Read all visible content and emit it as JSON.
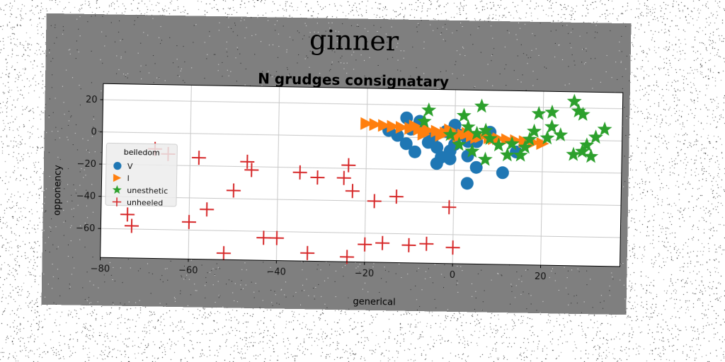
{
  "figure": {
    "suptitle": "ginner",
    "colors": {
      "figure_bg": "#7f7f7f",
      "axes_bg": "#ffffff",
      "grid": "#c8c8c8",
      "text": "#111111"
    }
  },
  "chart_data": {
    "type": "scatter",
    "title": "N grudges consignatary",
    "xlabel": "generical",
    "ylabel": "opponency",
    "xlim": [
      -80,
      38
    ],
    "ylim": [
      -78,
      30
    ],
    "xticks": [
      -80,
      -60,
      -40,
      -20,
      0,
      20
    ],
    "yticks": [
      20,
      0,
      -20,
      -40,
      -60
    ],
    "xtick_labels": [
      "−80",
      "−60",
      "−40",
      "−20",
      "0",
      "20"
    ],
    "ytick_labels": [
      "20",
      "0",
      "−20",
      "−40",
      "−60"
    ],
    "grid": true,
    "legend": {
      "title": "belledom",
      "position": "center-left"
    },
    "series": [
      {
        "name": "V",
        "marker": "circle",
        "color": "#1f77b4",
        "points": [
          [
            -11,
            12
          ],
          [
            -8,
            10
          ],
          [
            -10,
            5
          ],
          [
            -13,
            1
          ],
          [
            -15,
            4
          ],
          [
            -11,
            -4
          ],
          [
            -9,
            -9
          ],
          [
            -6,
            -3
          ],
          [
            -5,
            0
          ],
          [
            -4,
            -6
          ],
          [
            -3,
            -12
          ],
          [
            -1,
            -8
          ],
          [
            0,
            -4
          ],
          [
            1,
            2
          ],
          [
            0,
            8
          ],
          [
            3,
            -2
          ],
          [
            -2,
            4
          ],
          [
            -4,
            -16
          ],
          [
            -1,
            -13
          ],
          [
            3,
            -11
          ],
          [
            5,
            -2
          ],
          [
            5,
            -18
          ],
          [
            3,
            -28
          ],
          [
            11,
            -21
          ],
          [
            8,
            4
          ],
          [
            14,
            -8
          ]
        ]
      },
      {
        "name": "I",
        "marker": "triangle-right",
        "color": "#ff7f0e",
        "points": [
          [
            -20,
            8
          ],
          [
            -18,
            7.5
          ],
          [
            -16,
            7
          ],
          [
            -14,
            6.5
          ],
          [
            -12,
            6
          ],
          [
            -10,
            5.5
          ],
          [
            -8,
            5
          ],
          [
            -6,
            4.5
          ],
          [
            -4,
            4
          ],
          [
            -2,
            3
          ],
          [
            0,
            2.5
          ],
          [
            2,
            2
          ],
          [
            4,
            1.5
          ],
          [
            6,
            1
          ],
          [
            8,
            0.5
          ],
          [
            10,
            0
          ],
          [
            12,
            -0.5
          ],
          [
            14,
            -1
          ],
          [
            16,
            -1.5
          ],
          [
            18,
            -2
          ],
          [
            20,
            -2.5
          ],
          [
            -7,
            2
          ],
          [
            -3,
            1.5
          ],
          [
            1,
            1
          ],
          [
            5,
            0.5
          ],
          [
            9,
            0
          ],
          [
            -9,
            7
          ],
          [
            -1,
            5
          ],
          [
            3,
            3
          ]
        ]
      },
      {
        "name": "unesthetic",
        "marker": "star",
        "color": "#2ca02c",
        "points": [
          [
            -6,
            17
          ],
          [
            -7,
            10
          ],
          [
            2,
            14
          ],
          [
            6,
            20
          ],
          [
            3,
            7
          ],
          [
            5,
            3
          ],
          [
            7,
            5
          ],
          [
            8,
            0
          ],
          [
            10,
            -4
          ],
          [
            12,
            -10
          ],
          [
            16,
            -5
          ],
          [
            13,
            -3
          ],
          [
            18,
            5
          ],
          [
            21,
            1
          ],
          [
            19,
            16
          ],
          [
            22,
            17
          ],
          [
            22,
            8
          ],
          [
            24,
            3
          ],
          [
            27,
            24
          ],
          [
            28,
            18
          ],
          [
            29,
            16
          ],
          [
            30,
            -3
          ],
          [
            32,
            2
          ],
          [
            34,
            7
          ],
          [
            27,
            -9
          ],
          [
            29,
            -7
          ],
          [
            31,
            -10
          ],
          [
            1,
            -4
          ],
          [
            -1,
            2
          ],
          [
            4,
            -8
          ],
          [
            7,
            -13
          ],
          [
            15,
            -10
          ],
          [
            17,
            0
          ]
        ]
      },
      {
        "name": "unheeled",
        "marker": "plus",
        "color": "#d62728",
        "points": [
          [
            -68,
            -10
          ],
          [
            -65,
            -13
          ],
          [
            -58,
            -15
          ],
          [
            -47,
            -17
          ],
          [
            -46,
            -22
          ],
          [
            -35,
            -23
          ],
          [
            -31,
            -26
          ],
          [
            -25,
            -26
          ],
          [
            -24,
            -18
          ],
          [
            -23,
            -34
          ],
          [
            -50,
            -35
          ],
          [
            -56,
            -47
          ],
          [
            -60,
            -55
          ],
          [
            -74,
            -51
          ],
          [
            -73,
            -58
          ],
          [
            -18,
            -40
          ],
          [
            -13,
            -37
          ],
          [
            -1,
            -43
          ],
          [
            -43,
            -64
          ],
          [
            -40,
            -64
          ],
          [
            -52,
            -74
          ],
          [
            -33,
            -73
          ],
          [
            -24,
            -75
          ],
          [
            -20,
            -67
          ],
          [
            -16,
            -66
          ],
          [
            -10,
            -67
          ],
          [
            -6,
            -66
          ],
          [
            0,
            -68
          ]
        ]
      }
    ]
  }
}
